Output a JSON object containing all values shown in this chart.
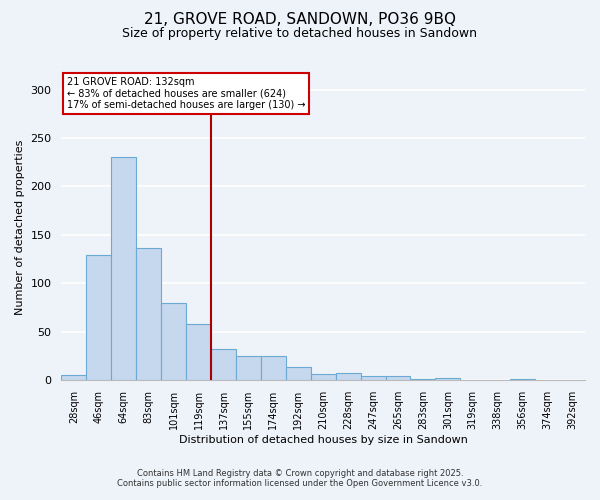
{
  "title": "21, GROVE ROAD, SANDOWN, PO36 9BQ",
  "subtitle": "Size of property relative to detached houses in Sandown",
  "xlabel": "Distribution of detached houses by size in Sandown",
  "ylabel": "Number of detached properties",
  "categories": [
    "28sqm",
    "46sqm",
    "64sqm",
    "83sqm",
    "101sqm",
    "119sqm",
    "137sqm",
    "155sqm",
    "174sqm",
    "192sqm",
    "210sqm",
    "228sqm",
    "247sqm",
    "265sqm",
    "283sqm",
    "301sqm",
    "319sqm",
    "338sqm",
    "356sqm",
    "374sqm",
    "392sqm"
  ],
  "values": [
    6,
    129,
    230,
    137,
    80,
    58,
    32,
    25,
    25,
    14,
    7,
    8,
    5,
    5,
    1,
    2,
    0,
    0,
    1,
    0,
    0
  ],
  "bar_color": "#c5d8ee",
  "bar_edge_color": "#6aaad4",
  "vline_color": "#aa0000",
  "annotation_title": "21 GROVE ROAD: 132sqm",
  "annotation_line1": "← 83% of detached houses are smaller (624)",
  "annotation_line2": "17% of semi-detached houses are larger (130) →",
  "annotation_box_facecolor": "#ffffff",
  "annotation_box_edgecolor": "#cc0000",
  "ylim": [
    0,
    315
  ],
  "yticks": [
    0,
    50,
    100,
    150,
    200,
    250,
    300
  ],
  "footer1": "Contains HM Land Registry data © Crown copyright and database right 2025.",
  "footer2": "Contains public sector information licensed under the Open Government Licence v3.0.",
  "bg_color": "#eef2f9",
  "title_fontsize": 11,
  "subtitle_fontsize": 9,
  "ylabel_fontsize": 8,
  "xlabel_fontsize": 8,
  "tick_fontsize": 7,
  "footer_fontsize": 6
}
